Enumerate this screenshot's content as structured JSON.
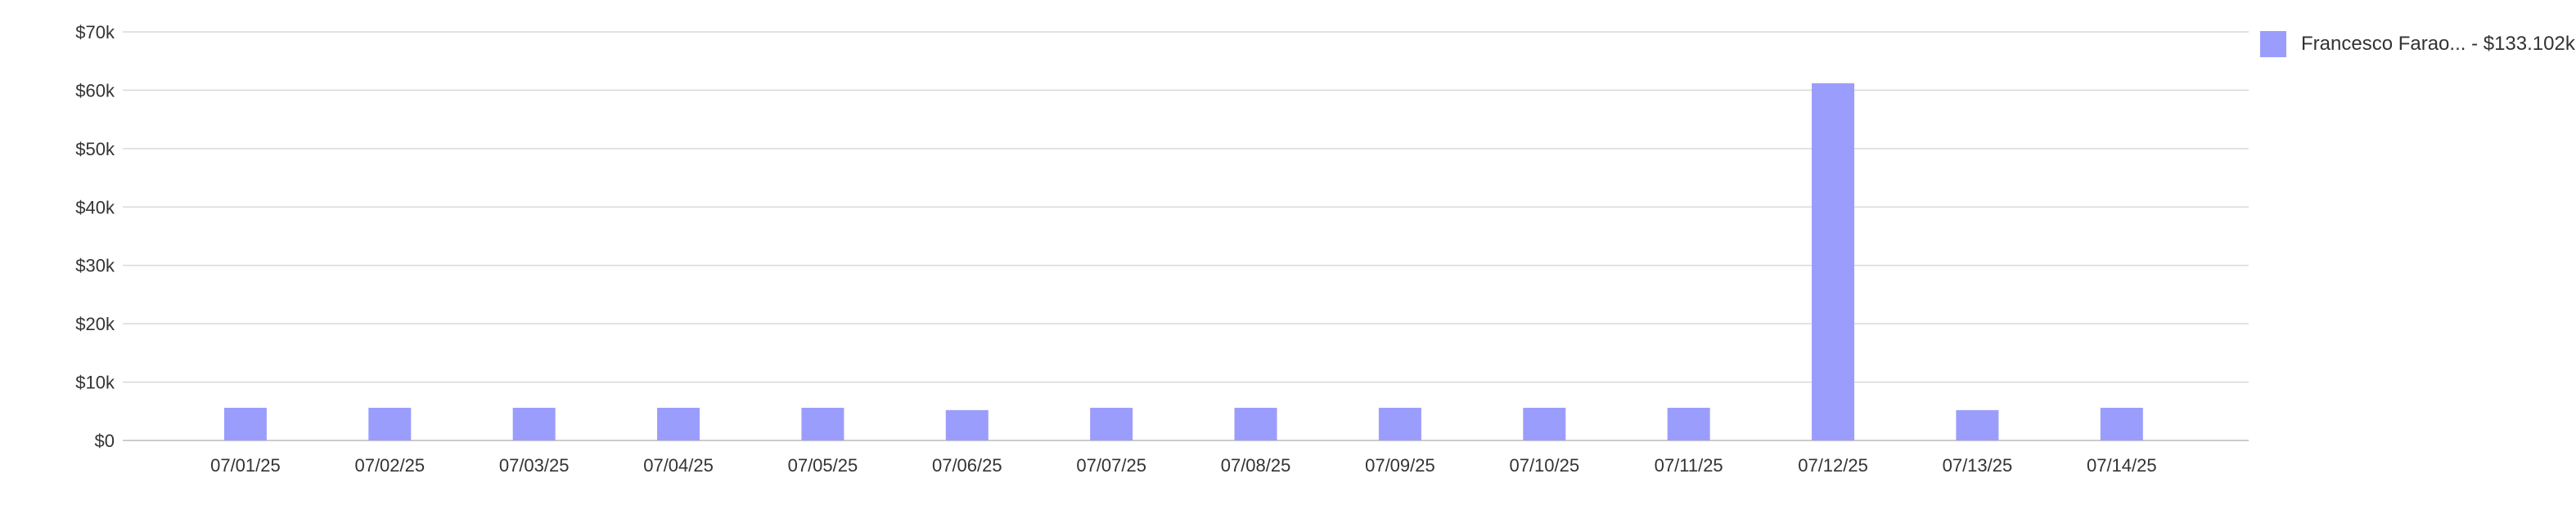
{
  "chart_data": {
    "type": "bar",
    "categories": [
      "07/01/25",
      "07/02/25",
      "07/03/25",
      "07/04/25",
      "07/05/25",
      "07/06/25",
      "07/07/25",
      "07/08/25",
      "07/09/25",
      "07/10/25",
      "07/11/25",
      "07/12/25",
      "07/13/25",
      "07/14/25"
    ],
    "series": [
      {
        "name": "Francesco Farao... - $133.102k",
        "values": [
          5600,
          5600,
          5600,
          5600,
          5600,
          5200,
          5600,
          5600,
          5600,
          5600,
          5600,
          61200,
          5200,
          5600
        ]
      }
    ],
    "y_ticks": [
      "$0",
      "$10k",
      "$20k",
      "$30k",
      "$40k",
      "$50k",
      "$60k",
      "$70k"
    ],
    "ylim": [
      0,
      70000
    ],
    "grid": true,
    "legend_position": "top-right",
    "colors": {
      "bar": "#9b9dfc",
      "grid": "#d9d9d9",
      "axis": "#cccccc"
    }
  }
}
